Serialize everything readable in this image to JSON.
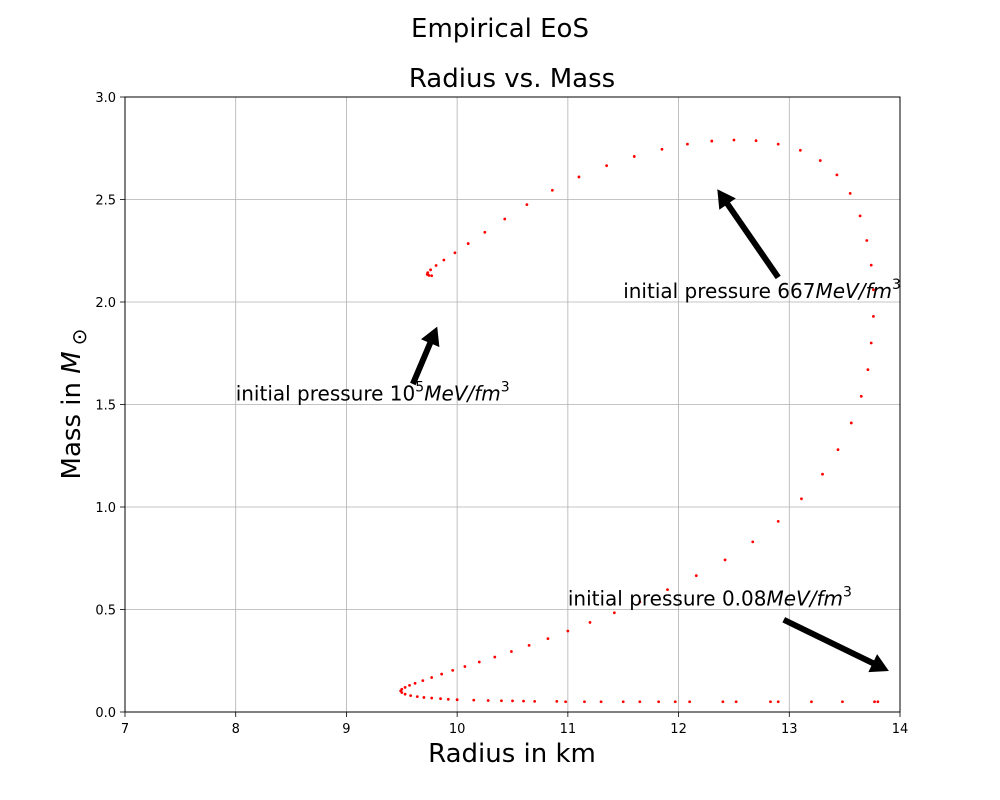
{
  "chart_data": {
    "type": "scatter",
    "suptitle": "Empirical EoS",
    "title": "Radius vs. Mass",
    "xlabel": "Radius in km",
    "ylabel": "Mass in M_⊙",
    "xlim": [
      7,
      14
    ],
    "ylim": [
      0.0,
      3.0
    ],
    "xticks": [
      7,
      8,
      9,
      10,
      11,
      12,
      13,
      14
    ],
    "xtick_labels": [
      "7",
      "8",
      "9",
      "10",
      "11",
      "12",
      "13",
      "14"
    ],
    "yticks": [
      0.0,
      0.5,
      1.0,
      1.5,
      2.0,
      2.5,
      3.0
    ],
    "ytick_labels": [
      "0.0",
      "0.5",
      "1.0",
      "1.5",
      "2.0",
      "2.5",
      "3.0"
    ],
    "grid": true,
    "marker_color": "#ff0000",
    "series": [
      {
        "name": "",
        "points": [
          [
            13.8,
            0.05
          ],
          [
            13.77,
            0.05
          ],
          [
            13.48,
            0.05
          ],
          [
            13.2,
            0.05
          ],
          [
            12.9,
            0.05
          ],
          [
            12.83,
            0.05
          ],
          [
            12.52,
            0.05
          ],
          [
            12.4,
            0.05
          ],
          [
            12.1,
            0.05
          ],
          [
            11.97,
            0.05
          ],
          [
            11.82,
            0.05
          ],
          [
            11.65,
            0.05
          ],
          [
            11.5,
            0.05
          ],
          [
            11.3,
            0.05
          ],
          [
            11.15,
            0.05
          ],
          [
            10.98,
            0.05
          ],
          [
            10.9,
            0.052
          ],
          [
            10.7,
            0.052
          ],
          [
            10.6,
            0.053
          ],
          [
            10.5,
            0.054
          ],
          [
            10.4,
            0.055
          ],
          [
            10.28,
            0.056
          ],
          [
            10.15,
            0.058
          ],
          [
            10.0,
            0.06
          ],
          [
            9.92,
            0.062
          ],
          [
            9.85,
            0.065
          ],
          [
            9.77,
            0.068
          ],
          [
            9.7,
            0.071
          ],
          [
            9.64,
            0.075
          ],
          [
            9.58,
            0.08
          ],
          [
            9.53,
            0.087
          ],
          [
            9.5,
            0.095
          ],
          [
            9.49,
            0.103
          ],
          [
            9.5,
            0.111
          ],
          [
            9.53,
            0.12
          ],
          [
            9.57,
            0.13
          ],
          [
            9.62,
            0.14
          ],
          [
            9.69,
            0.153
          ],
          [
            9.77,
            0.168
          ],
          [
            9.86,
            0.185
          ],
          [
            9.96,
            0.203
          ],
          [
            10.07,
            0.222
          ],
          [
            10.2,
            0.244
          ],
          [
            10.34,
            0.268
          ],
          [
            10.49,
            0.295
          ],
          [
            10.65,
            0.325
          ],
          [
            10.82,
            0.358
          ],
          [
            11.0,
            0.395
          ],
          [
            11.2,
            0.437
          ],
          [
            11.42,
            0.484
          ],
          [
            11.65,
            0.537
          ],
          [
            11.9,
            0.597
          ],
          [
            12.16,
            0.665
          ],
          [
            12.42,
            0.742
          ],
          [
            12.67,
            0.83
          ],
          [
            12.9,
            0.93
          ],
          [
            13.11,
            1.04
          ],
          [
            13.3,
            1.16
          ],
          [
            13.44,
            1.28
          ],
          [
            13.56,
            1.41
          ],
          [
            13.65,
            1.54
          ],
          [
            13.71,
            1.67
          ],
          [
            13.74,
            1.8
          ],
          [
            13.76,
            1.93
          ],
          [
            13.76,
            2.06
          ],
          [
            13.74,
            2.18
          ],
          [
            13.7,
            2.3
          ],
          [
            13.64,
            2.42
          ],
          [
            13.55,
            2.53
          ],
          [
            13.43,
            2.62
          ],
          [
            13.28,
            2.69
          ],
          [
            13.1,
            2.74
          ],
          [
            12.9,
            2.77
          ],
          [
            12.7,
            2.787
          ],
          [
            12.5,
            2.79
          ],
          [
            12.3,
            2.785
          ],
          [
            12.08,
            2.77
          ],
          [
            11.85,
            2.745
          ],
          [
            11.6,
            2.71
          ],
          [
            11.35,
            2.665
          ],
          [
            11.1,
            2.61
          ],
          [
            10.86,
            2.545
          ],
          [
            10.63,
            2.475
          ],
          [
            10.43,
            2.405
          ],
          [
            10.25,
            2.34
          ],
          [
            10.1,
            2.285
          ],
          [
            9.98,
            2.24
          ],
          [
            9.88,
            2.205
          ],
          [
            9.81,
            2.178
          ],
          [
            9.76,
            2.157
          ],
          [
            9.735,
            2.143
          ],
          [
            9.73,
            2.135
          ],
          [
            9.745,
            2.13
          ],
          [
            9.77,
            2.128
          ]
        ]
      }
    ],
    "annotations": [
      {
        "id": "low",
        "prefix": "initial pressure ",
        "value": "0.08",
        "unit": "MeV/fm",
        "sup": "3",
        "text_xy": [
          11.0,
          0.52
        ],
        "arrow_tail": [
          12.95,
          0.45
        ],
        "arrow_head": [
          13.9,
          0.2
        ]
      },
      {
        "id": "mid",
        "prefix": "initial pressure ",
        "value": "667",
        "unit": "MeV/fm",
        "sup": "3",
        "text_xy": [
          11.5,
          2.02
        ],
        "arrow_tail": [
          12.9,
          2.12
        ],
        "arrow_head": [
          12.35,
          2.55
        ]
      },
      {
        "id": "high",
        "prefix": "initial pressure ",
        "value": "10",
        "value_sup": "5",
        "unit": "MeV/fm",
        "sup": "3",
        "text_xy": [
          8.0,
          1.52
        ],
        "arrow_tail": [
          9.6,
          1.6
        ],
        "arrow_head": [
          9.82,
          1.88
        ]
      }
    ]
  }
}
